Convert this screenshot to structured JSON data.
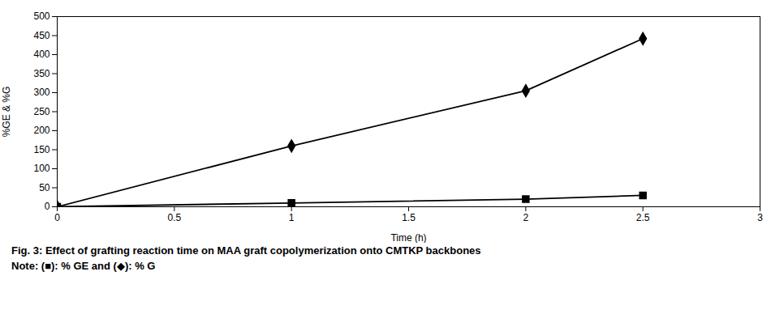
{
  "chart_data": {
    "type": "line",
    "title": "Fig. 3: Effect of grafting reaction time on MAA graft copolymerization onto CMTKP backbones",
    "annotations": [
      "Note: (■): % GE and (◆): % G"
    ],
    "x_label": "Time (h)",
    "y_label": "%GE & %G",
    "x": [
      0,
      1,
      2,
      2.5
    ],
    "series": [
      {
        "color": "#000000",
        "marker": "square",
        "values": [
          0,
          10,
          20,
          30
        ]
      },
      {
        "color": "#000000",
        "marker": "diamond",
        "values": [
          0,
          160,
          305,
          442
        ]
      }
    ],
    "xlim": [
      0,
      3
    ],
    "ylim": [
      0,
      500
    ],
    "xticks": [
      0,
      0.5,
      1,
      1.5,
      2,
      2.5,
      3
    ],
    "yticks": [
      0,
      50,
      100,
      150,
      200,
      250,
      300,
      350,
      400,
      450,
      500
    ],
    "grid": false
  }
}
